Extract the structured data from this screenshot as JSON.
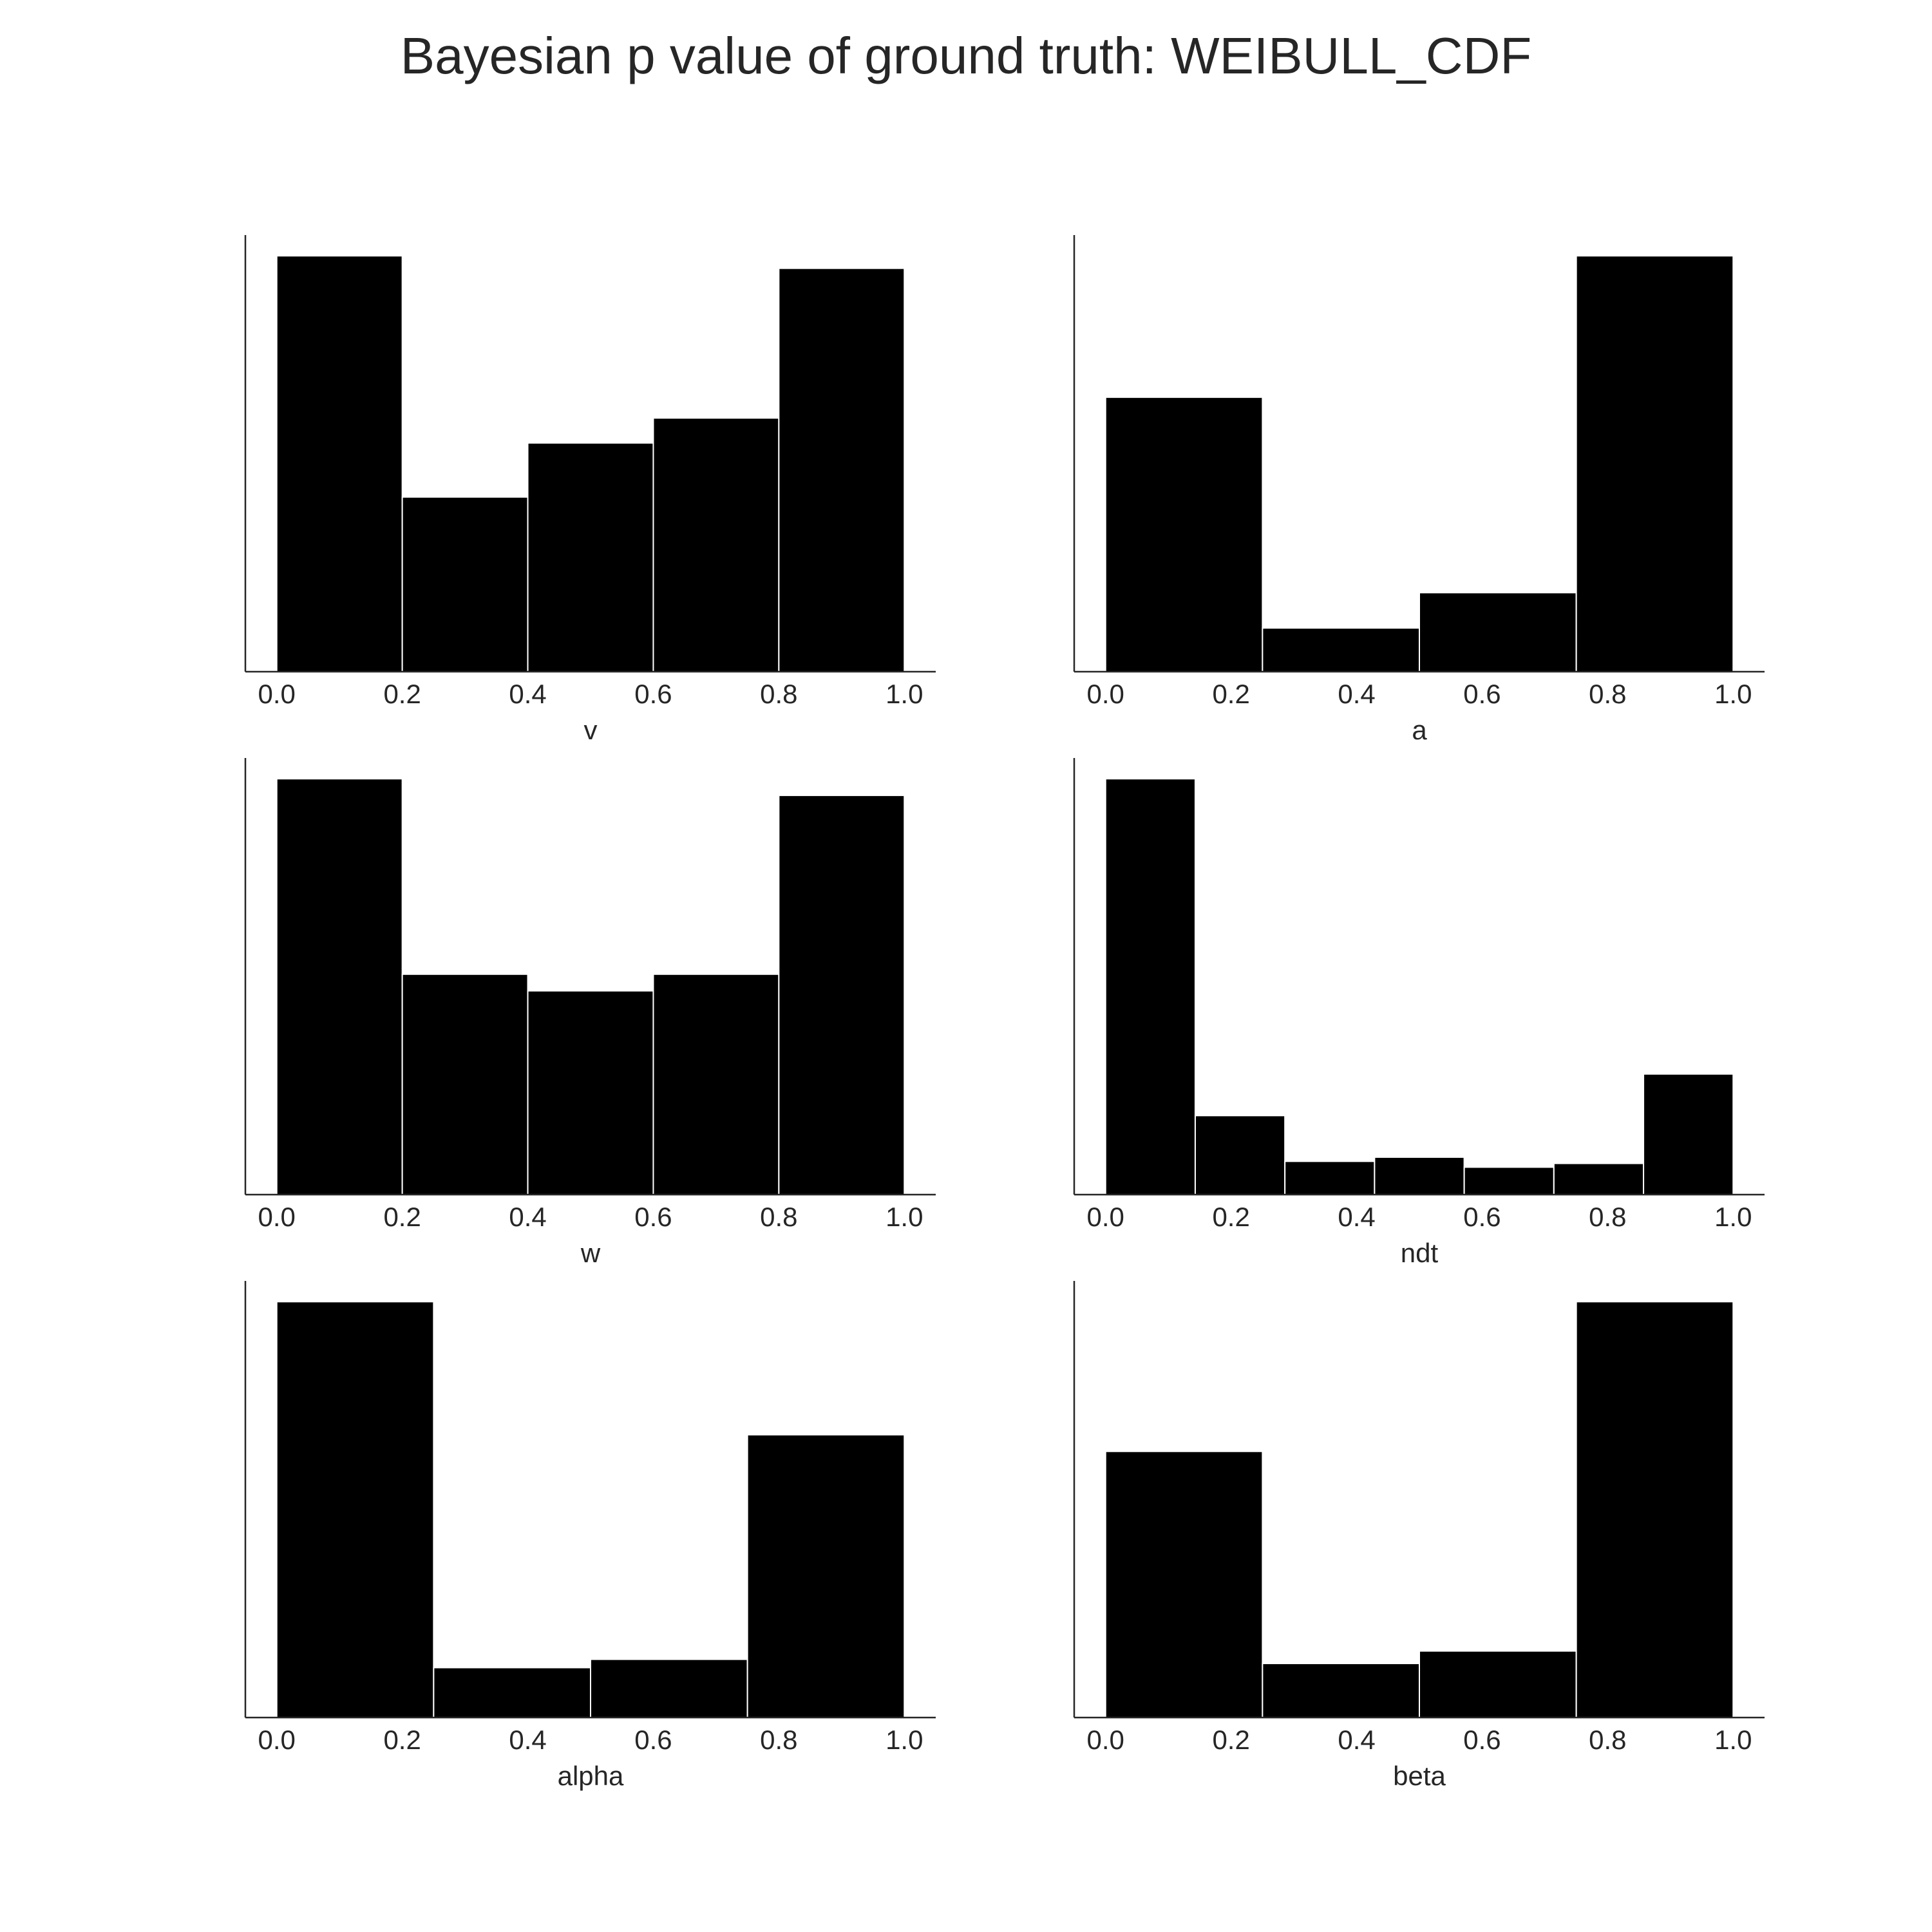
{
  "title": "Bayesian p value of ground truth: WEIBULL_CDF",
  "chart_data": [
    {
      "type": "histogram",
      "xlabel": "v",
      "bins": [
        0,
        0.2,
        0.4,
        0.6,
        0.8,
        1
      ],
      "values": [
        100,
        42,
        55,
        61,
        97
      ],
      "color": "#000000",
      "xlim": [
        -0.05,
        1.05
      ],
      "ylim": [
        0,
        105
      ],
      "xticks": [
        {
          "value": 0,
          "label": "0.0"
        },
        0.2,
        0.4,
        0.6,
        0.8,
        {
          "value": 1,
          "label": "1.0"
        }
      ]
    },
    {
      "type": "histogram",
      "xlabel": "a",
      "bins": [
        0,
        0.25,
        0.5,
        0.75,
        1
      ],
      "values": [
        66,
        10.5,
        19,
        100
      ],
      "color": "#000000",
      "xlim": [
        -0.05,
        1.05
      ],
      "ylim": [
        0,
        105
      ],
      "xticks": [
        {
          "value": 0,
          "label": "0.0"
        },
        0.2,
        0.4,
        0.6,
        0.8,
        {
          "value": 1,
          "label": "1.0"
        }
      ]
    },
    {
      "type": "histogram",
      "xlabel": "w",
      "bins": [
        0,
        0.2,
        0.4,
        0.6,
        0.8,
        1
      ],
      "values": [
        100,
        53,
        49,
        53,
        96
      ],
      "color": "#000000",
      "xlim": [
        -0.05,
        1.05
      ],
      "ylim": [
        0,
        105
      ],
      "xticks": [
        {
          "value": 0,
          "label": "0.0"
        },
        0.2,
        0.4,
        0.6,
        0.8,
        {
          "value": 1,
          "label": "1.0"
        }
      ]
    },
    {
      "type": "histogram",
      "xlabel": "ndt",
      "bins": [
        0,
        0.142857,
        0.285714,
        0.428571,
        0.571429,
        0.714286,
        0.857143,
        1
      ],
      "values": [
        100,
        19,
        8,
        9,
        6.6,
        7.5,
        29
      ],
      "color": "#000000",
      "xlim": [
        -0.05,
        1.05
      ],
      "ylim": [
        0,
        105
      ],
      "xticks": [
        {
          "value": 0,
          "label": "0.0"
        },
        0.2,
        0.4,
        0.6,
        0.8,
        {
          "value": 1,
          "label": "1.0"
        }
      ]
    },
    {
      "type": "histogram",
      "xlabel": "alpha",
      "bins": [
        0,
        0.25,
        0.5,
        0.75,
        1
      ],
      "values": [
        100,
        12,
        14,
        68
      ],
      "color": "#000000",
      "xlim": [
        -0.05,
        1.05
      ],
      "ylim": [
        0,
        105
      ],
      "xticks": [
        {
          "value": 0,
          "label": "0.0"
        },
        0.2,
        0.4,
        0.6,
        0.8,
        {
          "value": 1,
          "label": "1.0"
        }
      ]
    },
    {
      "type": "histogram",
      "xlabel": "beta",
      "bins": [
        0,
        0.25,
        0.5,
        0.75,
        1
      ],
      "values": [
        64,
        13,
        16,
        100
      ],
      "color": "#000000",
      "xlim": [
        -0.05,
        1.05
      ],
      "ylim": [
        0,
        105
      ],
      "xticks": [
        {
          "value": 0,
          "label": "0.0"
        },
        0.2,
        0.4,
        0.6,
        0.8,
        {
          "value": 1,
          "label": "1.0"
        }
      ]
    }
  ]
}
